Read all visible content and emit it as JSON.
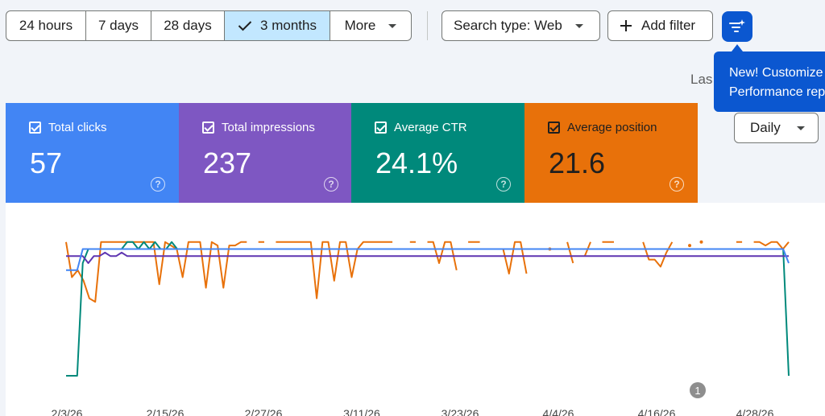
{
  "toolbar": {
    "ranges": [
      {
        "label": "24 hours",
        "selected": false
      },
      {
        "label": "7 days",
        "selected": false
      },
      {
        "label": "28 days",
        "selected": false
      },
      {
        "label": "3 months",
        "selected": true
      },
      {
        "label": "More",
        "selected": false
      }
    ],
    "search_type_label": "Search type: Web",
    "add_filter_label": "Add filter"
  },
  "tooltip": {
    "line1": "New! Customize",
    "line2": "Performance rep"
  },
  "last_updated_fragment": "Las",
  "metrics": [
    {
      "label": "Total clicks",
      "value": "57",
      "color": "#4285f4"
    },
    {
      "label": "Total impressions",
      "value": "237",
      "color": "#7e57c2"
    },
    {
      "label": "Average CTR",
      "value": "24.1%",
      "color": "#00897b"
    },
    {
      "label": "Average position",
      "value": "21.6",
      "color": "#e8710a"
    }
  ],
  "granularity": {
    "label": "Daily"
  },
  "chart_data": {
    "type": "line",
    "x_tick_labels": [
      "2/3/26",
      "2/15/26",
      "2/27/26",
      "3/11/26",
      "3/23/26",
      "4/4/26",
      "4/16/26",
      "4/28/26"
    ],
    "annotation": "1",
    "series": [
      {
        "key": "position",
        "color": "#e8710a",
        "values": [
          2,
          12,
          10,
          13,
          18,
          19,
          2,
          2,
          2,
          2,
          2,
          2,
          2,
          2,
          2,
          2,
          14,
          2,
          3,
          4,
          12,
          2,
          2,
          2,
          15,
          2,
          3,
          15,
          3,
          3,
          2,
          2,
          null,
          2,
          2,
          null,
          2,
          2,
          2,
          2,
          2,
          2,
          2,
          18,
          2,
          2,
          13,
          2,
          2,
          12,
          4,
          2,
          2,
          2,
          2,
          2,
          2,
          null,
          null,
          2,
          2,
          null,
          2,
          2,
          8,
          2,
          2,
          10,
          null,
          2,
          2,
          2,
          null,
          null,
          4,
          4,
          11,
          2,
          2,
          11,
          null,
          null,
          null,
          4,
          null,
          null,
          2,
          8,
          null,
          6,
          2,
          null,
          2,
          2,
          2,
          null,
          4,
          4,
          null,
          2,
          7,
          7,
          9,
          5,
          2,
          null,
          null,
          3,
          null,
          2,
          null,
          null,
          null,
          null,
          null,
          2,
          2,
          null,
          2,
          2,
          3,
          2,
          2,
          4,
          2
        ]
      },
      {
        "key": "ctr",
        "color": "#00897b",
        "values": [
          40,
          40,
          40,
          8,
          4,
          4,
          4,
          4,
          4,
          4,
          4,
          2,
          2,
          4,
          2,
          4,
          2,
          4,
          4,
          2,
          4,
          4,
          4,
          4,
          4,
          4,
          4,
          4,
          4,
          4,
          4,
          4,
          4,
          4,
          4,
          4,
          4,
          4,
          4,
          4,
          4,
          4,
          4,
          4,
          4,
          4,
          4,
          4,
          4,
          4,
          4,
          4,
          4,
          4,
          4,
          4,
          4,
          4,
          4,
          4,
          4,
          4,
          4,
          4,
          4,
          4,
          4,
          4,
          4,
          4,
          4,
          4,
          4,
          4,
          4,
          4,
          4,
          4,
          4,
          4,
          4,
          4,
          4,
          4,
          4,
          4,
          4,
          4,
          4,
          4,
          4,
          4,
          4,
          4,
          4,
          4,
          4,
          4,
          4,
          4,
          4,
          4,
          4,
          4,
          4,
          4,
          4,
          4,
          4,
          4,
          4,
          4,
          4,
          4,
          4,
          4,
          4,
          4,
          4,
          4,
          4,
          4,
          4,
          4,
          4,
          4,
          4,
          4,
          4,
          4,
          40
        ]
      },
      {
        "key": "impressions",
        "color": "#5e35b1",
        "values": [
          6,
          6,
          6,
          6,
          8,
          6,
          6,
          5,
          6,
          6,
          5,
          6,
          6,
          6,
          6,
          6,
          6,
          6,
          6,
          6,
          6,
          6,
          6,
          6,
          6,
          6,
          6,
          6,
          6,
          6,
          6,
          6,
          6,
          6,
          6,
          6,
          6,
          6,
          6,
          6,
          6,
          6,
          6,
          6,
          6,
          6,
          6,
          6,
          6,
          6,
          6,
          6,
          6,
          6,
          6,
          6,
          6,
          6,
          6,
          6,
          6,
          6,
          6,
          6,
          6,
          6,
          6,
          6,
          6,
          6,
          6,
          6,
          6,
          6,
          6,
          6,
          6,
          6,
          6,
          6,
          6,
          6,
          6,
          6,
          6,
          6,
          6,
          6,
          6,
          6,
          6,
          6,
          6,
          6,
          6,
          6,
          6,
          6,
          6,
          6,
          6,
          6,
          6,
          6,
          6,
          6,
          6,
          6,
          6,
          6,
          6,
          6,
          6,
          6,
          6,
          6,
          6,
          6,
          6,
          6,
          6,
          6,
          6,
          6,
          6,
          6,
          6,
          6,
          6,
          6,
          6
        ]
      },
      {
        "key": "clicks",
        "color": "#4285f4",
        "values": [
          10,
          10,
          10,
          4,
          4,
          4,
          4,
          4,
          4,
          4,
          4,
          4,
          4,
          4,
          4,
          4,
          4,
          4,
          4,
          4,
          4,
          4,
          4,
          4,
          4,
          4,
          4,
          4,
          4,
          4,
          4,
          4,
          4,
          4,
          4,
          4,
          4,
          4,
          4,
          4,
          4,
          4,
          4,
          4,
          4,
          4,
          4,
          4,
          4,
          4,
          4,
          4,
          4,
          4,
          4,
          4,
          4,
          4,
          4,
          4,
          4,
          4,
          4,
          4,
          4,
          4,
          4,
          4,
          4,
          4,
          4,
          4,
          4,
          4,
          4,
          4,
          4,
          4,
          4,
          4,
          4,
          4,
          4,
          4,
          4,
          4,
          4,
          4,
          4,
          4,
          4,
          4,
          4,
          4,
          4,
          4,
          4,
          4,
          4,
          4,
          4,
          4,
          4,
          4,
          4,
          4,
          4,
          4,
          4,
          4,
          4,
          4,
          4,
          4,
          4,
          4,
          4,
          4,
          4,
          4,
          4,
          4,
          4,
          4,
          4,
          4,
          4,
          4,
          4,
          4,
          8
        ]
      }
    ]
  }
}
